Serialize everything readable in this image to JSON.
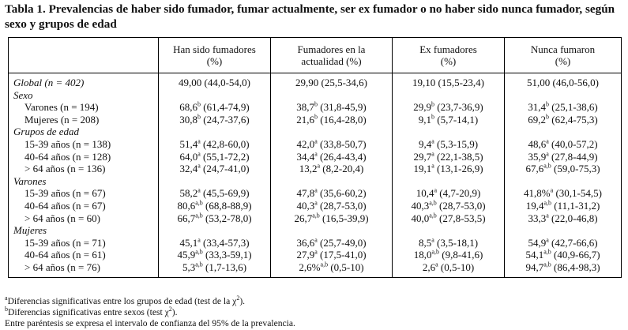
{
  "title": "Tabla 1. Prevalencias de haber sido fumador, fumar actualmente, ser ex fumador o no haber sido nunca fumador, según sexo y grupos de edad",
  "headers": [
    {
      "line1": "",
      "line2": ""
    },
    {
      "line1": "Han sido fumadores",
      "line2": "(%)"
    },
    {
      "line1": "Fumadores en la",
      "line2": "actualidad (%)"
    },
    {
      "line1": "Ex fumadores",
      "line2": "(%)"
    },
    {
      "line1": "Nunca fumaron",
      "line2": "(%)"
    }
  ],
  "rows": [
    {
      "label": "Global (n = 402)",
      "italic": true,
      "cells": [
        {
          "v": "49,00",
          "s": "",
          "ci": "(44,0-54,0)"
        },
        {
          "v": "29,90",
          "s": "",
          "ci": "(25,5-34,6)"
        },
        {
          "v": "19,10",
          "s": "",
          "ci": "(15,5-23,4)"
        },
        {
          "v": "51,00",
          "s": "",
          "ci": "(46,0-56,0)"
        }
      ]
    },
    {
      "label": "Sexo",
      "italic": true,
      "cells": []
    },
    {
      "label": "Varones (n = 194)",
      "cells": [
        {
          "v": "68,6",
          "s": "b",
          "ci": "(61,4-74,9)"
        },
        {
          "v": "38,7",
          "s": "b",
          "ci": "(31,8-45,9)"
        },
        {
          "v": "29,9",
          "s": "b",
          "ci": "(23,7-36,9)"
        },
        {
          "v": "31,4",
          "s": "b",
          "ci": "(25,1-38,6)"
        }
      ]
    },
    {
      "label": "Mujeres (n = 208)",
      "cells": [
        {
          "v": "30,8",
          "s": "b",
          "ci": "(24,7-37,6)"
        },
        {
          "v": "21,6",
          "s": "b",
          "ci": "(16,4-28,0)"
        },
        {
          "v": "9,1",
          "s": "b",
          "ci": "(5,7-14,1)"
        },
        {
          "v": "69,2",
          "s": "b",
          "ci": "(62,4-75,3)"
        }
      ]
    },
    {
      "label": "Grupos de edad",
      "italic": true,
      "cells": []
    },
    {
      "label": "15-39 años (n = 138)",
      "cells": [
        {
          "v": "51,4",
          "s": "a",
          "ci": "(42,8-60,0)"
        },
        {
          "v": "42,0",
          "s": "a",
          "ci": "(33,8-50,7)"
        },
        {
          "v": "9,4",
          "s": "a",
          "ci": "(5,3-15,9)"
        },
        {
          "v": "48,6",
          "s": "a",
          "ci": "(40,0-57,2)"
        }
      ]
    },
    {
      "label": "40-64 años (n = 128)",
      "cells": [
        {
          "v": "64,0",
          "s": "a",
          "ci": "(55,1-72,2)"
        },
        {
          "v": "34,4",
          "s": "a",
          "ci": "(26,4-43,4)"
        },
        {
          "v": "29,7",
          "s": "a",
          "ci": "(22,1-38,5)"
        },
        {
          "v": "35,9",
          "s": "a",
          "ci": "(27,8-44,9)"
        }
      ]
    },
    {
      "label": "> 64 años (n = 136)",
      "cells": [
        {
          "v": "32,4",
          "s": "a",
          "ci": "(24,7-41,0)"
        },
        {
          "v": "13,2",
          "s": "a",
          "ci": "(8,2-20,4)"
        },
        {
          "v": "19,1",
          "s": "a",
          "ci": "(13,1-26,9)"
        },
        {
          "v": "67,6",
          "s": "a,b",
          "ci": "(59,0-75,3)"
        }
      ]
    },
    {
      "label": "Varones",
      "italic": true,
      "cells": []
    },
    {
      "label": "15-39 años (n = 67)",
      "cells": [
        {
          "v": "58,2",
          "s": "a",
          "ci": "(45,5-69,9)"
        },
        {
          "v": "47,8",
          "s": "a",
          "ci": "(35,6-60,2)"
        },
        {
          "v": "10,4",
          "s": "a",
          "ci": "(4,7-20,9)"
        },
        {
          "v": "41,8%",
          "s": "a",
          "ci": "(30,1-54,5)"
        }
      ]
    },
    {
      "label": "40-64 años (n = 67)",
      "cells": [
        {
          "v": "80,6",
          "s": "a,b",
          "ci": "(68,8-88,9)"
        },
        {
          "v": "40,3",
          "s": "a",
          "ci": "(28,7-53,0)"
        },
        {
          "v": "40,3",
          "s": "a,b",
          "ci": "(28,7-53,0)"
        },
        {
          "v": "19,4",
          "s": "a,b",
          "ci": "(11,1-31,2)"
        }
      ]
    },
    {
      "label": "> 64 años (n = 60)",
      "cells": [
        {
          "v": "66,7",
          "s": "a,b",
          "ci": "(53,2-78,0)"
        },
        {
          "v": "26,7",
          "s": "a,b",
          "ci": "(16,5-39,9)"
        },
        {
          "v": "40,0",
          "s": "a,b",
          "ci": "(27,8-53,5)"
        },
        {
          "v": "33,3",
          "s": "a",
          "ci": "(22,0-46,8)"
        }
      ]
    },
    {
      "label": "Mujeres",
      "italic": true,
      "cells": []
    },
    {
      "label": "15-39 años (n = 71)",
      "cells": [
        {
          "v": "45,1",
          "s": "a",
          "ci": "(33,4-57,3)"
        },
        {
          "v": "36,6",
          "s": "a",
          "ci": "(25,7-49,0)"
        },
        {
          "v": "8,5",
          "s": "a",
          "ci": "(3,5-18,1)"
        },
        {
          "v": "54,9",
          "s": "a",
          "ci": "(42,7-66,6)"
        }
      ]
    },
    {
      "label": "40-64 años (n = 61)",
      "cells": [
        {
          "v": "45,9",
          "s": "a,b",
          "ci": "(33,3-59,1)"
        },
        {
          "v": "27,9",
          "s": "a",
          "ci": "(17,5-41,0)"
        },
        {
          "v": "18,0",
          "s": "a,b",
          "ci": "(9,8-41,6)"
        },
        {
          "v": "54,1",
          "s": "a,b",
          "ci": "(40,9-66,7)"
        }
      ]
    },
    {
      "label": "> 64 años (n = 76)",
      "cells": [
        {
          "v": "5,3",
          "s": "a,b",
          "ci": "(1,7-13,6)"
        },
        {
          "v": "2,6%",
          "s": "a,b",
          "ci": "(0,5-10)"
        },
        {
          "v": "2,6",
          "s": "a",
          "ci": "(0,5-10)"
        },
        {
          "v": "94,7",
          "s": "a,b",
          "ci": "(86,4-98,3)"
        }
      ]
    }
  ],
  "notes": [
    {
      "mark": "a",
      "text": "Diferencias significativas entre los grupos de edad (test de la χ",
      "sup": "2",
      "end": ")."
    },
    {
      "mark": "b",
      "text": "Diferencias significativas entre sexos (test χ",
      "sup": "2",
      "end": ")."
    },
    {
      "mark": "",
      "text": "Entre paréntesis se expresa el intervalo de confianza del 95% de la prevalencia.",
      "sup": "",
      "end": ""
    }
  ]
}
